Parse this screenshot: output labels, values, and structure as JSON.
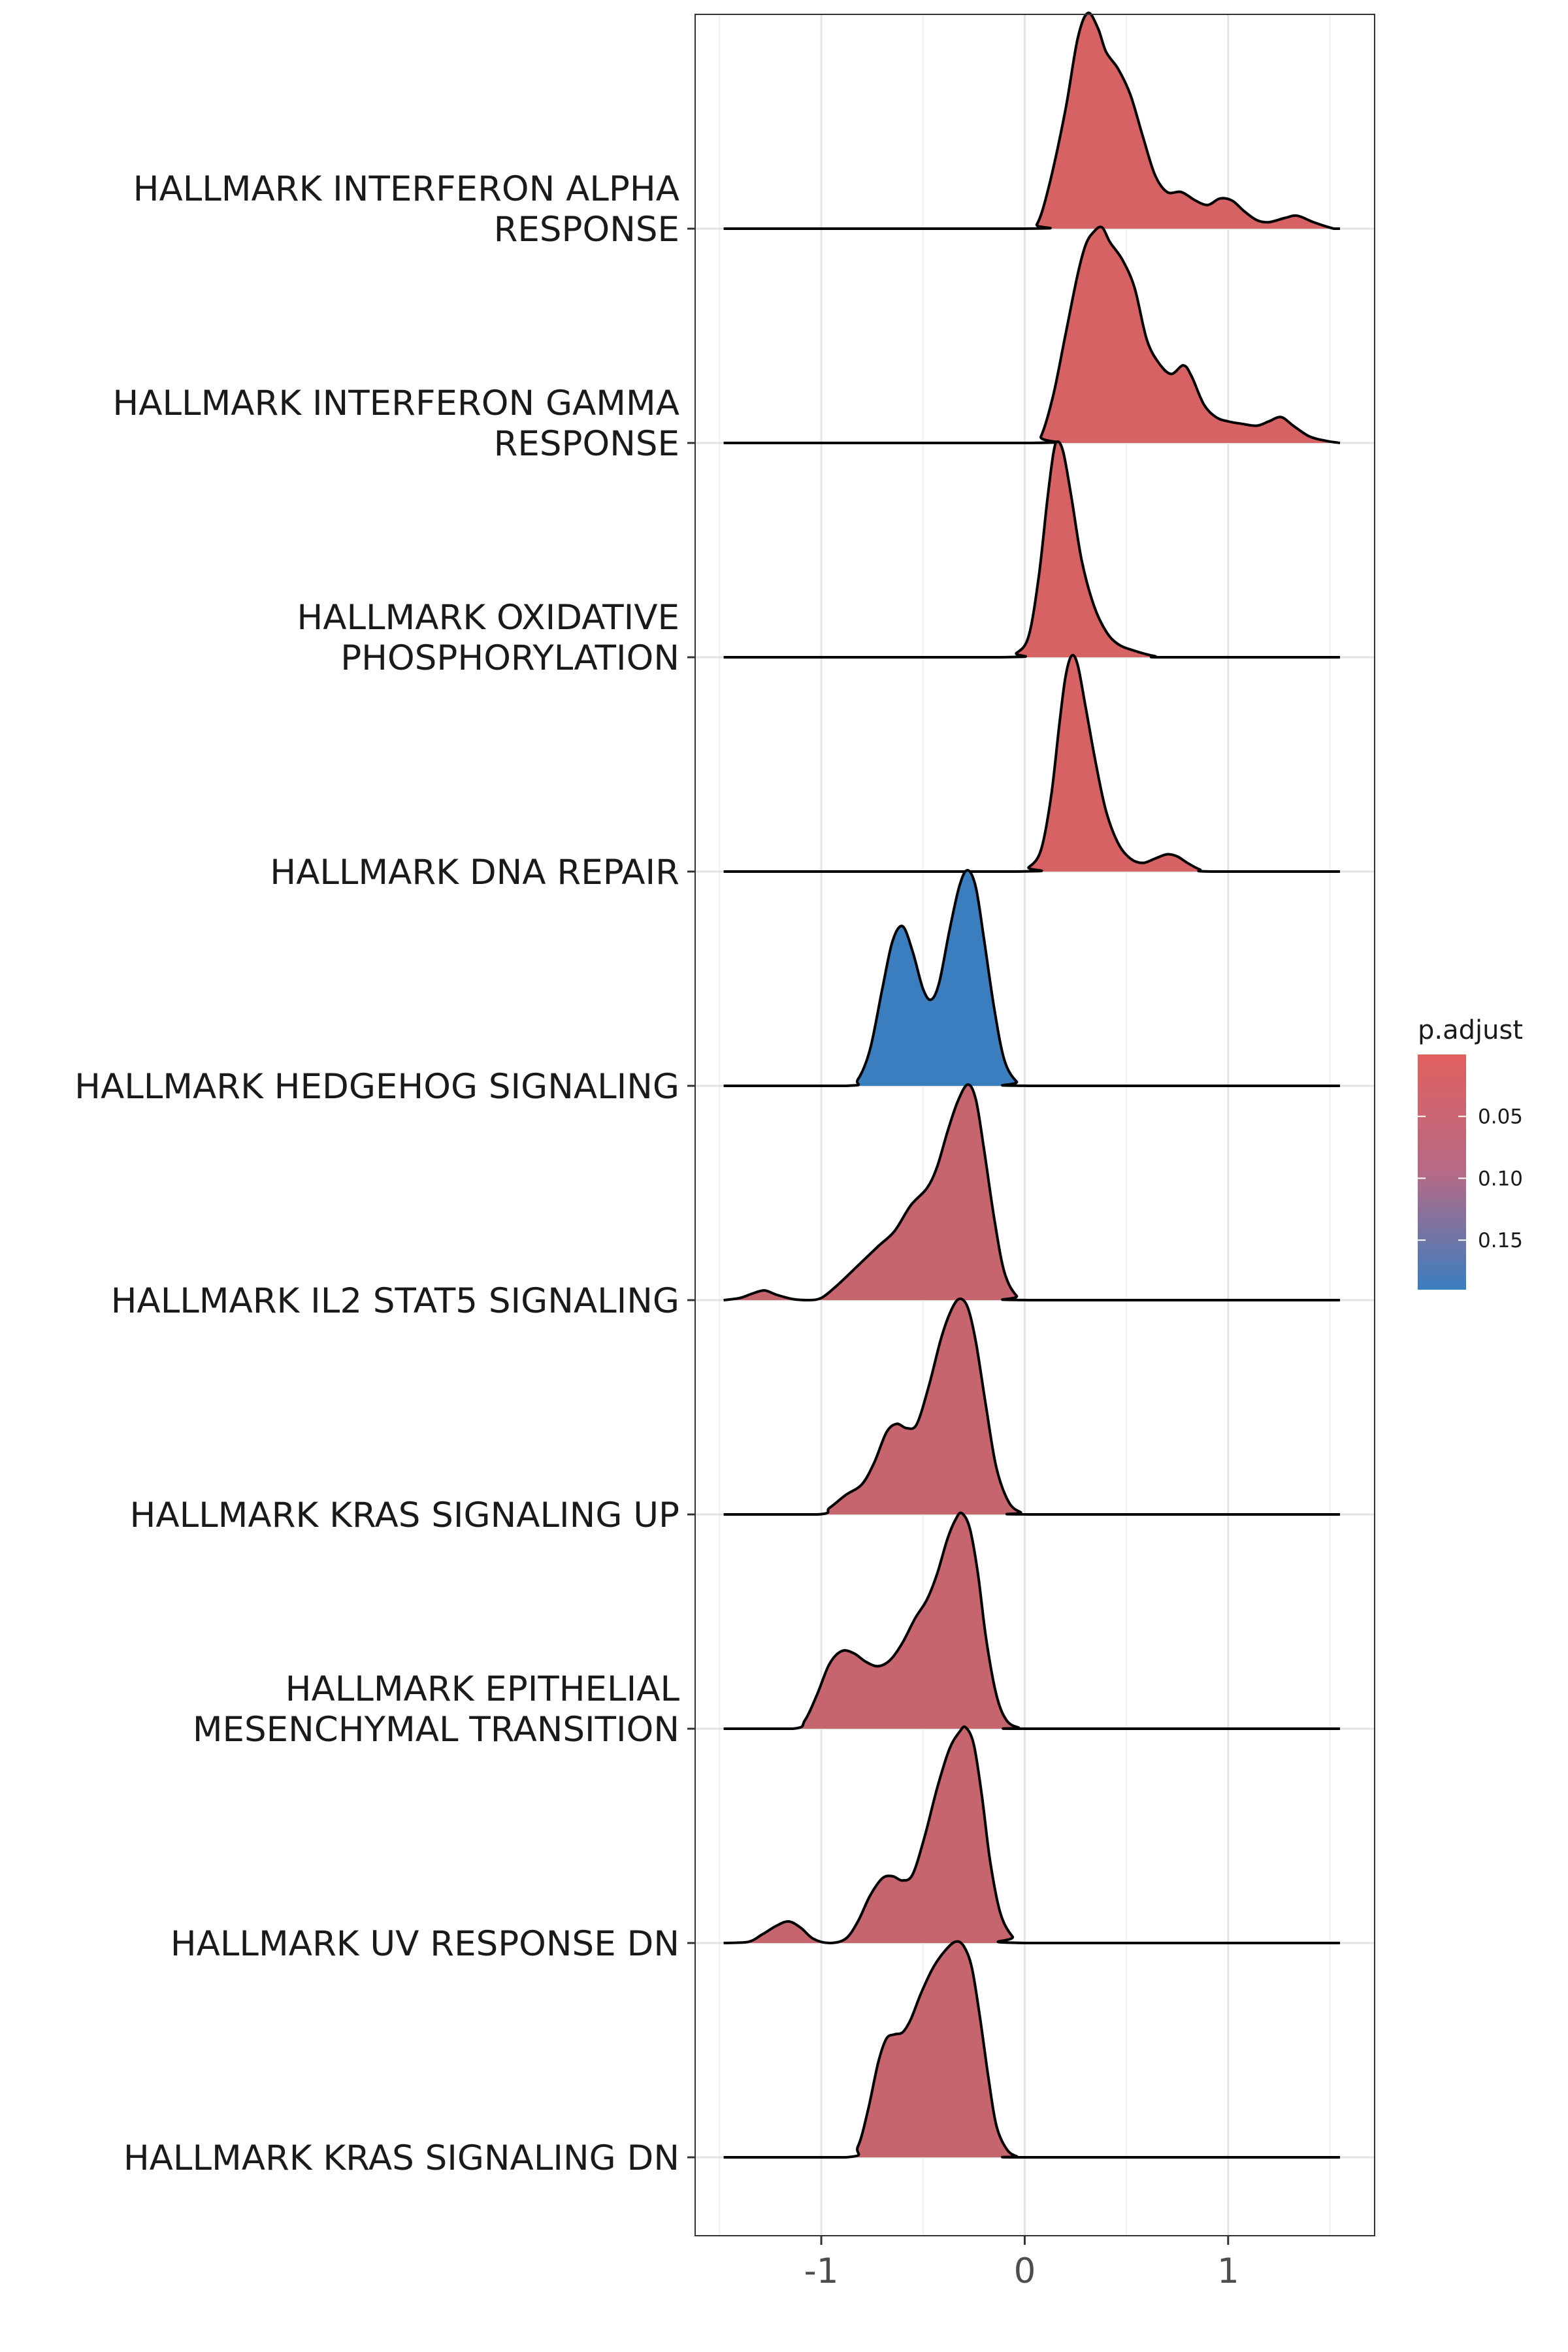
{
  "chart_data": {
    "type": "ridgeline",
    "title": "",
    "xlabel": "",
    "ylabel": "",
    "xlim": [
      -1.62,
      1.72
    ],
    "x_ticks": [
      -1,
      0,
      1
    ],
    "x_tick_labels": [
      "-1",
      "0",
      "1"
    ],
    "grid": true,
    "legend": {
      "title": "p.adjust",
      "position": "right",
      "low_color": "#E0605E",
      "high_color": "#3A7EBF",
      "range": [
        0.0,
        0.19
      ],
      "ticks": [
        0.05,
        0.1,
        0.15
      ],
      "tick_labels": [
        "0.05",
        "0.10",
        "0.15"
      ]
    },
    "series": [
      {
        "name": "HALLMARK INTERFERON ALPHA RESPONSE",
        "label_lines": [
          "HALLMARK INTERFERON ALPHA",
          "RESPONSE"
        ],
        "p_adjust": 0.01,
        "density": [
          [
            -1.48,
            0
          ],
          [
            0,
            0
          ],
          [
            0.06,
            0.02
          ],
          [
            0.12,
            0.2
          ],
          [
            0.2,
            0.55
          ],
          [
            0.26,
            0.88
          ],
          [
            0.31,
            1.0
          ],
          [
            0.36,
            0.93
          ],
          [
            0.4,
            0.82
          ],
          [
            0.46,
            0.74
          ],
          [
            0.52,
            0.62
          ],
          [
            0.58,
            0.43
          ],
          [
            0.64,
            0.25
          ],
          [
            0.7,
            0.17
          ],
          [
            0.77,
            0.17
          ],
          [
            0.84,
            0.13
          ],
          [
            0.9,
            0.11
          ],
          [
            0.96,
            0.14
          ],
          [
            1.02,
            0.13
          ],
          [
            1.08,
            0.08
          ],
          [
            1.14,
            0.04
          ],
          [
            1.2,
            0.03
          ],
          [
            1.28,
            0.05
          ],
          [
            1.34,
            0.06
          ],
          [
            1.42,
            0.03
          ],
          [
            1.52,
            0.0
          ],
          [
            1.55,
            0
          ]
        ]
      },
      {
        "name": "HALLMARK INTERFERON GAMMA RESPONSE",
        "label_lines": [
          "HALLMARK INTERFERON GAMMA",
          "RESPONSE"
        ],
        "p_adjust": 0.01,
        "density": [
          [
            -1.48,
            0
          ],
          [
            0.04,
            0
          ],
          [
            0.08,
            0.03
          ],
          [
            0.14,
            0.22
          ],
          [
            0.2,
            0.5
          ],
          [
            0.26,
            0.78
          ],
          [
            0.3,
            0.92
          ],
          [
            0.34,
            0.98
          ],
          [
            0.38,
            1.0
          ],
          [
            0.42,
            0.93
          ],
          [
            0.48,
            0.85
          ],
          [
            0.54,
            0.72
          ],
          [
            0.6,
            0.48
          ],
          [
            0.66,
            0.37
          ],
          [
            0.72,
            0.32
          ],
          [
            0.78,
            0.36
          ],
          [
            0.82,
            0.31
          ],
          [
            0.88,
            0.18
          ],
          [
            0.94,
            0.12
          ],
          [
            1.0,
            0.1
          ],
          [
            1.06,
            0.09
          ],
          [
            1.14,
            0.08
          ],
          [
            1.2,
            0.1
          ],
          [
            1.26,
            0.12
          ],
          [
            1.32,
            0.08
          ],
          [
            1.4,
            0.03
          ],
          [
            1.48,
            0.01
          ],
          [
            1.55,
            0
          ]
        ]
      },
      {
        "name": "HALLMARK OXIDATIVE PHOSPHORYLATION",
        "label_lines": [
          "HALLMARK OXIDATIVE",
          "PHOSPHORYLATION"
        ],
        "p_adjust": 0.01,
        "density": [
          [
            -1.48,
            0
          ],
          [
            -0.12,
            0
          ],
          [
            -0.04,
            0.02
          ],
          [
            0.02,
            0.1
          ],
          [
            0.07,
            0.38
          ],
          [
            0.11,
            0.72
          ],
          [
            0.14,
            0.94
          ],
          [
            0.16,
            1.0
          ],
          [
            0.19,
            0.95
          ],
          [
            0.23,
            0.74
          ],
          [
            0.28,
            0.45
          ],
          [
            0.34,
            0.24
          ],
          [
            0.4,
            0.12
          ],
          [
            0.46,
            0.06
          ],
          [
            0.54,
            0.03
          ],
          [
            0.64,
            0.005
          ],
          [
            0.7,
            0
          ],
          [
            1.55,
            0
          ]
        ]
      },
      {
        "name": "HALLMARK DNA REPAIR",
        "label_lines": [
          "HALLMARK DNA REPAIR"
        ],
        "p_adjust": 0.01,
        "density": [
          [
            -1.48,
            0
          ],
          [
            -0.04,
            0
          ],
          [
            0.02,
            0.02
          ],
          [
            0.08,
            0.1
          ],
          [
            0.13,
            0.35
          ],
          [
            0.17,
            0.68
          ],
          [
            0.2,
            0.9
          ],
          [
            0.23,
            1.0
          ],
          [
            0.26,
            0.96
          ],
          [
            0.3,
            0.76
          ],
          [
            0.35,
            0.5
          ],
          [
            0.4,
            0.28
          ],
          [
            0.46,
            0.13
          ],
          [
            0.52,
            0.06
          ],
          [
            0.58,
            0.04
          ],
          [
            0.64,
            0.06
          ],
          [
            0.7,
            0.08
          ],
          [
            0.75,
            0.07
          ],
          [
            0.8,
            0.04
          ],
          [
            0.86,
            0.01
          ],
          [
            0.92,
            0
          ],
          [
            1.55,
            0
          ]
        ]
      },
      {
        "name": "HALLMARK HEDGEHOG SIGNALING",
        "label_lines": [
          "HALLMARK HEDGEHOG SIGNALING"
        ],
        "p_adjust": 0.19,
        "density": [
          [
            -1.48,
            0
          ],
          [
            -0.88,
            0
          ],
          [
            -0.82,
            0.03
          ],
          [
            -0.76,
            0.17
          ],
          [
            -0.7,
            0.45
          ],
          [
            -0.65,
            0.67
          ],
          [
            -0.6,
            0.74
          ],
          [
            -0.55,
            0.62
          ],
          [
            -0.5,
            0.45
          ],
          [
            -0.46,
            0.4
          ],
          [
            -0.42,
            0.48
          ],
          [
            -0.37,
            0.72
          ],
          [
            -0.32,
            0.93
          ],
          [
            -0.28,
            1.0
          ],
          [
            -0.24,
            0.92
          ],
          [
            -0.2,
            0.68
          ],
          [
            -0.15,
            0.36
          ],
          [
            -0.1,
            0.12
          ],
          [
            -0.04,
            0.02
          ],
          [
            0.02,
            0
          ],
          [
            1.55,
            0
          ]
        ]
      },
      {
        "name": "HALLMARK IL2 STAT5 SIGNALING",
        "label_lines": [
          "HALLMARK IL2 STAT5 SIGNALING"
        ],
        "p_adjust": 0.03,
        "density": [
          [
            -1.48,
            0
          ],
          [
            -1.4,
            0.01
          ],
          [
            -1.34,
            0.03
          ],
          [
            -1.28,
            0.045
          ],
          [
            -1.22,
            0.025
          ],
          [
            -1.14,
            0.005
          ],
          [
            -1.06,
            0.0
          ],
          [
            -1.0,
            0.01
          ],
          [
            -0.92,
            0.07
          ],
          [
            -0.82,
            0.16
          ],
          [
            -0.72,
            0.25
          ],
          [
            -0.64,
            0.32
          ],
          [
            -0.56,
            0.44
          ],
          [
            -0.48,
            0.52
          ],
          [
            -0.43,
            0.62
          ],
          [
            -0.38,
            0.78
          ],
          [
            -0.33,
            0.92
          ],
          [
            -0.28,
            1.0
          ],
          [
            -0.24,
            0.93
          ],
          [
            -0.2,
            0.7
          ],
          [
            -0.15,
            0.38
          ],
          [
            -0.1,
            0.13
          ],
          [
            -0.04,
            0.02
          ],
          [
            0.02,
            0
          ],
          [
            1.55,
            0
          ]
        ]
      },
      {
        "name": "HALLMARK KRAS SIGNALING UP",
        "label_lines": [
          "HALLMARK KRAS SIGNALING UP"
        ],
        "p_adjust": 0.03,
        "density": [
          [
            -1.48,
            0
          ],
          [
            -1.02,
            0
          ],
          [
            -0.96,
            0.03
          ],
          [
            -0.88,
            0.09
          ],
          [
            -0.8,
            0.14
          ],
          [
            -0.74,
            0.24
          ],
          [
            -0.68,
            0.38
          ],
          [
            -0.63,
            0.42
          ],
          [
            -0.58,
            0.4
          ],
          [
            -0.53,
            0.42
          ],
          [
            -0.47,
            0.6
          ],
          [
            -0.41,
            0.82
          ],
          [
            -0.36,
            0.95
          ],
          [
            -0.32,
            1.0
          ],
          [
            -0.28,
            0.96
          ],
          [
            -0.24,
            0.8
          ],
          [
            -0.19,
            0.5
          ],
          [
            -0.14,
            0.22
          ],
          [
            -0.08,
            0.06
          ],
          [
            -0.02,
            0.01
          ],
          [
            0.04,
            0
          ],
          [
            1.55,
            0
          ]
        ]
      },
      {
        "name": "HALLMARK EPITHELIAL MESENCHYMAL TRANSITION",
        "label_lines": [
          "HALLMARK EPITHELIAL",
          "MESENCHYMAL TRANSITION"
        ],
        "p_adjust": 0.03,
        "density": [
          [
            -1.48,
            0
          ],
          [
            -1.14,
            0
          ],
          [
            -1.08,
            0.04
          ],
          [
            -1.02,
            0.16
          ],
          [
            -0.96,
            0.3
          ],
          [
            -0.9,
            0.36
          ],
          [
            -0.84,
            0.35
          ],
          [
            -0.78,
            0.31
          ],
          [
            -0.72,
            0.29
          ],
          [
            -0.66,
            0.32
          ],
          [
            -0.6,
            0.4
          ],
          [
            -0.54,
            0.51
          ],
          [
            -0.48,
            0.6
          ],
          [
            -0.43,
            0.72
          ],
          [
            -0.38,
            0.88
          ],
          [
            -0.34,
            0.97
          ],
          [
            -0.31,
            1.0
          ],
          [
            -0.27,
            0.93
          ],
          [
            -0.23,
            0.72
          ],
          [
            -0.19,
            0.42
          ],
          [
            -0.14,
            0.16
          ],
          [
            -0.09,
            0.04
          ],
          [
            -0.03,
            0.005
          ],
          [
            0.02,
            0
          ],
          [
            1.55,
            0
          ]
        ]
      },
      {
        "name": "HALLMARK UV RESPONSE DN",
        "label_lines": [
          "HALLMARK UV RESPONSE DN"
        ],
        "p_adjust": 0.03,
        "density": [
          [
            -1.48,
            0
          ],
          [
            -1.36,
            0.005
          ],
          [
            -1.29,
            0.04
          ],
          [
            -1.22,
            0.08
          ],
          [
            -1.16,
            0.1
          ],
          [
            -1.1,
            0.07
          ],
          [
            -1.04,
            0.02
          ],
          [
            -0.96,
            0.0
          ],
          [
            -0.88,
            0.02
          ],
          [
            -0.82,
            0.1
          ],
          [
            -0.76,
            0.22
          ],
          [
            -0.7,
            0.3
          ],
          [
            -0.65,
            0.31
          ],
          [
            -0.6,
            0.29
          ],
          [
            -0.55,
            0.32
          ],
          [
            -0.49,
            0.5
          ],
          [
            -0.43,
            0.72
          ],
          [
            -0.37,
            0.9
          ],
          [
            -0.32,
            0.98
          ],
          [
            -0.29,
            1.0
          ],
          [
            -0.25,
            0.92
          ],
          [
            -0.21,
            0.68
          ],
          [
            -0.17,
            0.38
          ],
          [
            -0.12,
            0.14
          ],
          [
            -0.06,
            0.03
          ],
          [
            0.0,
            0
          ],
          [
            1.55,
            0
          ]
        ]
      },
      {
        "name": "HALLMARK KRAS SIGNALING DN",
        "label_lines": [
          "HALLMARK KRAS SIGNALING DN"
        ],
        "p_adjust": 0.03,
        "density": [
          [
            -1.48,
            0
          ],
          [
            -0.88,
            0
          ],
          [
            -0.82,
            0.05
          ],
          [
            -0.77,
            0.22
          ],
          [
            -0.72,
            0.44
          ],
          [
            -0.68,
            0.55
          ],
          [
            -0.64,
            0.57
          ],
          [
            -0.6,
            0.58
          ],
          [
            -0.56,
            0.64
          ],
          [
            -0.51,
            0.76
          ],
          [
            -0.45,
            0.88
          ],
          [
            -0.39,
            0.96
          ],
          [
            -0.34,
            1.0
          ],
          [
            -0.3,
            0.98
          ],
          [
            -0.26,
            0.88
          ],
          [
            -0.22,
            0.65
          ],
          [
            -0.18,
            0.38
          ],
          [
            -0.14,
            0.15
          ],
          [
            -0.09,
            0.04
          ],
          [
            -0.04,
            0.005
          ],
          [
            0.02,
            0
          ],
          [
            1.55,
            0
          ]
        ]
      }
    ]
  }
}
